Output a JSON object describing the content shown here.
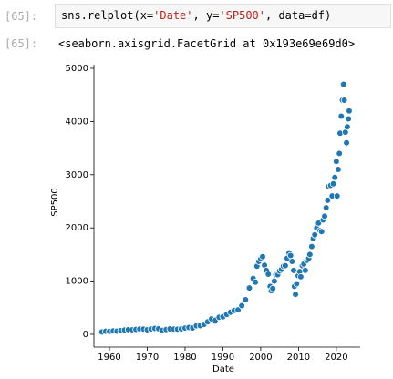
{
  "input_cell": {
    "prompt": "[65]:",
    "code": [
      "sns.relplot(x=",
      "'Date'",
      ", y=",
      "'SP500'",
      ", data=df)"
    ]
  },
  "output_cell": {
    "prompt": "[65]:",
    "text": "<seaborn.axisgrid.FacetGrid at 0x193e69e69d0>"
  },
  "chart_data": {
    "type": "scatter",
    "xlabel": "Date",
    "ylabel": "SP500",
    "color": "#1f77b4",
    "x": [
      1958,
      1959,
      1960,
      1961,
      1962,
      1963,
      1964,
      1965,
      1966,
      1967,
      1968,
      1969,
      1970,
      1971,
      1972,
      1973,
      1974,
      1975,
      1976,
      1977,
      1978,
      1979,
      1980,
      1981,
      1982,
      1983,
      1984,
      1985,
      1986,
      1987,
      1987.9,
      1988,
      1989,
      1990,
      1991,
      1992,
      1993,
      1994,
      1995,
      1996,
      1997,
      1998,
      1998.6,
      1999,
      1999.5,
      2000,
      2000.5,
      2001,
      2001.5,
      2002,
      2002.5,
      2002.8,
      2003.2,
      2003.6,
      2004,
      2004.5,
      2005,
      2005.5,
      2006,
      2006.5,
      2007,
      2007.5,
      2007.9,
      2008.3,
      2008.7,
      2008.9,
      2009.2,
      2009.5,
      2009.9,
      2010.3,
      2010.6,
      2011,
      2011.4,
      2011.8,
      2012.2,
      2012.7,
      2013,
      2013.5,
      2013.9,
      2014.3,
      2014.8,
      2015.3,
      2015.7,
      2016.1,
      2016.5,
      2016.9,
      2017.3,
      2017.7,
      2018,
      2018.5,
      2018.9,
      2019.2,
      2019.6,
      2020,
      2020.2,
      2020.5,
      2020.8,
      2021,
      2021.3,
      2021.6,
      2021.9,
      2022.1,
      2022.4,
      2022.7,
      2022.9,
      2023.2,
      2023.4
    ],
    "values": [
      45,
      57,
      56,
      65,
      60,
      70,
      82,
      88,
      85,
      92,
      100,
      98,
      85,
      100,
      110,
      105,
      75,
      90,
      102,
      98,
      96,
      103,
      118,
      128,
      120,
      160,
      162,
      185,
      235,
      290,
      245,
      265,
      320,
      330,
      375,
      415,
      450,
      460,
      540,
      650,
      870,
      1050,
      980,
      1280,
      1370,
      1420,
      1460,
      1300,
      1200,
      1130,
      900,
      820,
      860,
      1000,
      1120,
      1120,
      1190,
      1220,
      1280,
      1290,
      1430,
      1530,
      1480,
      1370,
      1200,
      900,
      750,
      950,
      1100,
      1180,
      1080,
      1290,
      1320,
      1200,
      1390,
      1430,
      1500,
      1650,
      1800,
      1870,
      2000,
      2090,
      1950,
      1930,
      2150,
      2220,
      2380,
      2520,
      2780,
      2800,
      2600,
      2830,
      2950,
      3250,
      2600,
      3100,
      3400,
      3780,
      4100,
      4400,
      4700,
      4400,
      3800,
      3600,
      3900,
      4050,
      4200
    ],
    "xlim": [
      1955.9,
      2026.3
    ],
    "xticks": [
      1960,
      1970,
      1980,
      1990,
      2000,
      2010,
      2020
    ],
    "ylim": [
      -240,
      5000
    ],
    "yticks": [
      0,
      1000,
      2000,
      3000,
      4000,
      5000
    ]
  }
}
